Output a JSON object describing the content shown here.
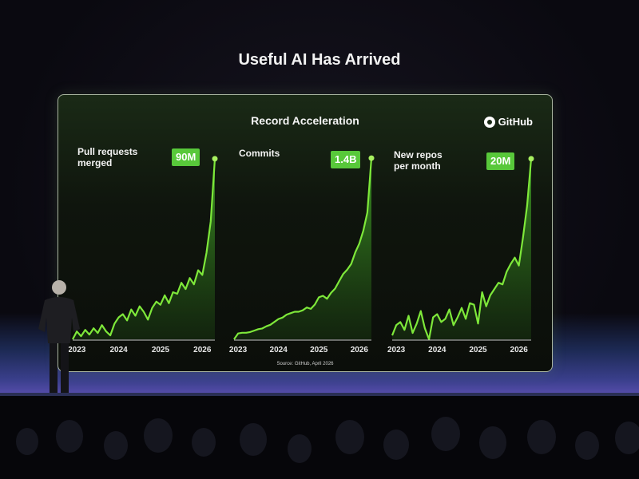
{
  "slide": {
    "title": "Useful AI Has Arrived",
    "screen_title": "Record Acceleration",
    "brand": "GitHub",
    "source": "Source: GitHub, April 2026"
  },
  "chart_data": [
    {
      "type": "area",
      "title": "Pull requests merged",
      "title_lines": [
        "Pull requests",
        "merged"
      ],
      "badge": "90M",
      "color": "#7ee83a",
      "categories": [
        "2023",
        "2024",
        "2025",
        "2026"
      ],
      "x": [
        2022.9,
        2023.0,
        2023.1,
        2023.2,
        2023.3,
        2023.4,
        2023.5,
        2023.6,
        2023.7,
        2023.8,
        2023.9,
        2024.0,
        2024.1,
        2024.2,
        2024.3,
        2024.4,
        2024.5,
        2024.6,
        2024.7,
        2024.8,
        2024.9,
        2025.0,
        2025.1,
        2025.2,
        2025.3,
        2025.4,
        2025.5,
        2025.6,
        2025.7,
        2025.8,
        2025.9,
        2026.0,
        2026.1,
        2026.2,
        2026.3
      ],
      "y": [
        0,
        10,
        4,
        12,
        6,
        14,
        8,
        18,
        10,
        5,
        20,
        28,
        32,
        24,
        38,
        30,
        42,
        35,
        25,
        40,
        48,
        44,
        56,
        46,
        60,
        58,
        72,
        64,
        78,
        70,
        88,
        82,
        110,
        150,
        230
      ],
      "ylim": [
        0,
        240
      ]
    },
    {
      "type": "area",
      "title": "Commits",
      "title_lines": [
        "Commits"
      ],
      "badge": "1.4B",
      "color": "#7ee83a",
      "categories": [
        "2023",
        "2024",
        "2025",
        "2026"
      ],
      "x": [
        2022.9,
        2023.0,
        2023.1,
        2023.2,
        2023.3,
        2023.4,
        2023.5,
        2023.6,
        2023.7,
        2023.8,
        2023.9,
        2024.0,
        2024.1,
        2024.2,
        2024.3,
        2024.4,
        2024.5,
        2024.6,
        2024.7,
        2024.8,
        2024.9,
        2025.0,
        2025.1,
        2025.2,
        2025.3,
        2025.4,
        2025.5,
        2025.6,
        2025.7,
        2025.8,
        2025.9,
        2026.0,
        2026.1,
        2026.2,
        2026.3
      ],
      "y": [
        0,
        8,
        9,
        9,
        10,
        12,
        14,
        15,
        18,
        20,
        24,
        28,
        30,
        34,
        36,
        38,
        38,
        40,
        44,
        42,
        48,
        58,
        60,
        56,
        64,
        70,
        80,
        90,
        96,
        104,
        120,
        132,
        150,
        175,
        250
      ],
      "ylim": [
        0,
        260
      ]
    },
    {
      "type": "area",
      "title": "New repos per month",
      "title_lines": [
        "New repos",
        "per month"
      ],
      "badge": "20M",
      "color": "#7ee83a",
      "categories": [
        "2023",
        "2024",
        "2025",
        "2026"
      ],
      "x": [
        2022.9,
        2023.0,
        2023.1,
        2023.2,
        2023.3,
        2023.4,
        2023.5,
        2023.6,
        2023.7,
        2023.8,
        2023.9,
        2024.0,
        2024.1,
        2024.2,
        2024.3,
        2024.4,
        2024.5,
        2024.6,
        2024.7,
        2024.8,
        2024.9,
        2025.0,
        2025.1,
        2025.2,
        2025.3,
        2025.4,
        2025.5,
        2025.6,
        2025.7,
        2025.8,
        2025.9,
        2026.0,
        2026.1,
        2026.2,
        2026.3
      ],
      "y": [
        5,
        18,
        22,
        12,
        30,
        8,
        20,
        36,
        14,
        0,
        28,
        32,
        22,
        26,
        38,
        18,
        28,
        40,
        26,
        46,
        44,
        20,
        60,
        42,
        56,
        64,
        72,
        70,
        86,
        96,
        104,
        94,
        130,
        170,
        230
      ],
      "ylim": [
        0,
        240
      ]
    }
  ]
}
